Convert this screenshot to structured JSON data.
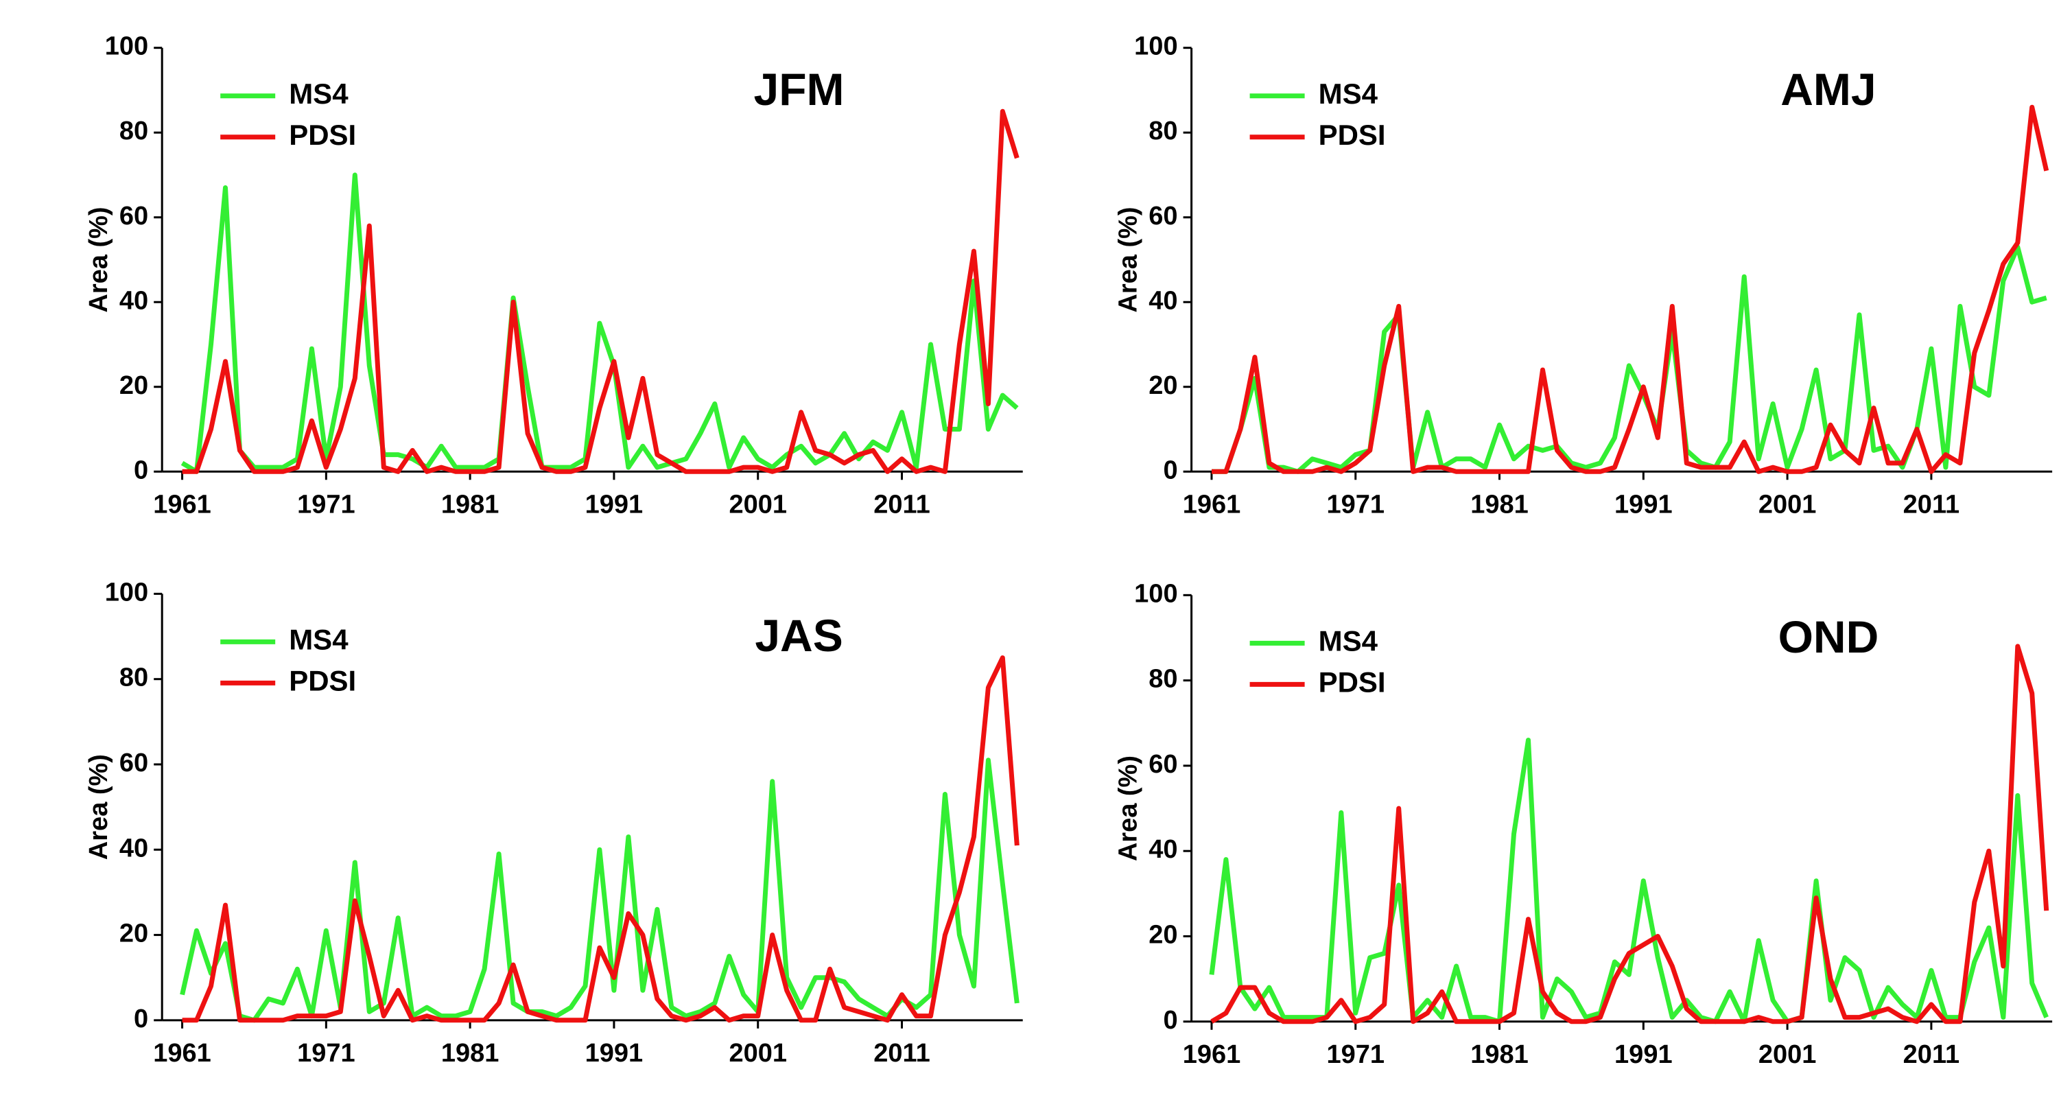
{
  "chart_data": [
    {
      "type": "line",
      "title": "JFM",
      "ylabel": "Area (%)",
      "legend": "upper left",
      "x": [
        1961,
        1962,
        1963,
        1964,
        1965,
        1966,
        1967,
        1968,
        1969,
        1970,
        1971,
        1972,
        1973,
        1974,
        1975,
        1976,
        1977,
        1978,
        1979,
        1980,
        1981,
        1982,
        1983,
        1984,
        1985,
        1986,
        1987,
        1988,
        1989,
        1990,
        1991,
        1992,
        1993,
        1994,
        1995,
        1996,
        1997,
        1998,
        1999,
        2000,
        2001,
        2002,
        2003,
        2004,
        2005,
        2006,
        2007,
        2008,
        2009,
        2010,
        2011,
        2012,
        2013,
        2014,
        2015,
        2016,
        2017,
        2018,
        2019
      ],
      "xlim": [
        1959.6,
        2019.4
      ],
      "xticks": [
        1961,
        1971,
        1981,
        1991,
        2001,
        2011
      ],
      "ylim": [
        0,
        100
      ],
      "yticks": [
        0,
        20,
        40,
        60,
        80,
        100
      ],
      "series": [
        {
          "name": "MS4",
          "color": "#33ee33",
          "values": [
            2,
            0,
            30,
            67,
            5,
            1,
            1,
            1,
            3,
            29,
            3,
            20,
            70,
            25,
            4,
            4,
            3,
            1,
            6,
            1,
            1,
            1,
            3,
            41,
            20,
            1,
            1,
            1,
            3,
            35,
            25,
            1,
            6,
            1,
            2,
            3,
            9,
            16,
            1,
            8,
            3,
            1,
            4,
            6,
            2,
            4,
            9,
            3,
            7,
            5,
            14,
            1,
            30,
            10,
            10,
            45,
            10,
            18,
            15
          ]
        },
        {
          "name": "PDSI",
          "color": "#ee1111",
          "values": [
            0,
            0,
            10,
            26,
            5,
            0,
            0,
            0,
            1,
            12,
            1,
            10,
            22,
            58,
            1,
            0,
            5,
            0,
            1,
            0,
            0,
            0,
            1,
            40,
            9,
            1,
            0,
            0,
            1,
            15,
            26,
            8,
            22,
            4,
            2,
            0,
            0,
            0,
            0,
            1,
            1,
            0,
            1,
            14,
            5,
            4,
            2,
            4,
            5,
            0,
            3,
            0,
            1,
            0,
            30,
            52,
            16,
            85,
            74
          ]
        }
      ]
    },
    {
      "type": "line",
      "title": "AMJ",
      "ylabel": "Area (%)",
      "legend": "upper left",
      "x": [
        1961,
        1962,
        1963,
        1964,
        1965,
        1966,
        1967,
        1968,
        1969,
        1970,
        1971,
        1972,
        1973,
        1974,
        1975,
        1976,
        1977,
        1978,
        1979,
        1980,
        1981,
        1982,
        1983,
        1984,
        1985,
        1986,
        1987,
        1988,
        1989,
        1990,
        1991,
        1992,
        1993,
        1994,
        1995,
        1996,
        1997,
        1998,
        1999,
        2000,
        2001,
        2002,
        2003,
        2004,
        2005,
        2006,
        2007,
        2008,
        2009,
        2010,
        2011,
        2012,
        2013,
        2014,
        2015,
        2016,
        2017,
        2018,
        2019
      ],
      "xlim": [
        1959.6,
        2019.4
      ],
      "xticks": [
        1961,
        1971,
        1981,
        1991,
        2001,
        2011
      ],
      "ylim": [
        0,
        100
      ],
      "yticks": [
        0,
        20,
        40,
        60,
        80,
        100
      ],
      "series": [
        {
          "name": "MS4",
          "color": "#33ee33",
          "values": [
            0,
            0,
            10,
            22,
            1,
            1,
            0,
            3,
            2,
            1,
            4,
            5,
            33,
            37,
            1,
            14,
            1,
            3,
            3,
            1,
            11,
            3,
            6,
            5,
            6,
            2,
            1,
            2,
            8,
            25,
            18,
            10,
            33,
            5,
            2,
            1,
            7,
            46,
            3,
            16,
            1,
            10,
            24,
            3,
            5,
            37,
            5,
            6,
            1,
            10,
            29,
            1,
            39,
            20,
            18,
            45,
            53,
            40,
            41
          ]
        },
        {
          "name": "PDSI",
          "color": "#ee1111",
          "values": [
            0,
            0,
            10,
            27,
            2,
            0,
            0,
            0,
            1,
            0,
            2,
            5,
            25,
            39,
            0,
            1,
            1,
            0,
            0,
            0,
            0,
            0,
            0,
            24,
            5,
            1,
            0,
            0,
            1,
            10,
            20,
            8,
            39,
            2,
            1,
            1,
            1,
            7,
            0,
            1,
            0,
            0,
            1,
            11,
            5,
            2,
            15,
            2,
            2,
            10,
            0,
            4,
            2,
            28,
            38,
            49,
            54,
            86,
            71
          ]
        }
      ]
    },
    {
      "type": "line",
      "title": "JAS",
      "ylabel": "Area (%)",
      "legend": "upper left",
      "x": [
        1961,
        1962,
        1963,
        1964,
        1965,
        1966,
        1967,
        1968,
        1969,
        1970,
        1971,
        1972,
        1973,
        1974,
        1975,
        1976,
        1977,
        1978,
        1979,
        1980,
        1981,
        1982,
        1983,
        1984,
        1985,
        1986,
        1987,
        1988,
        1989,
        1990,
        1991,
        1992,
        1993,
        1994,
        1995,
        1996,
        1997,
        1998,
        1999,
        2000,
        2001,
        2002,
        2003,
        2004,
        2005,
        2006,
        2007,
        2008,
        2009,
        2010,
        2011,
        2012,
        2013,
        2014,
        2015,
        2016,
        2017,
        2018,
        2019
      ],
      "xlim": [
        1959.6,
        2019.4
      ],
      "xticks": [
        1961,
        1971,
        1981,
        1991,
        2001,
        2011
      ],
      "ylim": [
        0,
        100
      ],
      "yticks": [
        0,
        20,
        40,
        60,
        80,
        100
      ],
      "series": [
        {
          "name": "MS4",
          "color": "#33ee33",
          "values": [
            6,
            21,
            11,
            18,
            1,
            0,
            5,
            4,
            12,
            1,
            21,
            3,
            37,
            2,
            4,
            24,
            1,
            3,
            1,
            1,
            2,
            12,
            39,
            4,
            2,
            2,
            1,
            3,
            8,
            40,
            7,
            43,
            7,
            26,
            3,
            1,
            2,
            4,
            15,
            6,
            2,
            56,
            10,
            3,
            10,
            10,
            9,
            5,
            3,
            1,
            5,
            3,
            6,
            53,
            20,
            8,
            61,
            32,
            4
          ]
        },
        {
          "name": "PDSI",
          "color": "#ee1111",
          "values": [
            0,
            0,
            8,
            27,
            0,
            0,
            0,
            0,
            1,
            1,
            1,
            2,
            28,
            15,
            1,
            7,
            0,
            1,
            0,
            0,
            0,
            0,
            4,
            13,
            2,
            1,
            0,
            0,
            0,
            17,
            10,
            25,
            20,
            5,
            1,
            0,
            1,
            3,
            0,
            1,
            1,
            20,
            7,
            0,
            0,
            12,
            3,
            2,
            1,
            0,
            6,
            1,
            1,
            20,
            30,
            43,
            78,
            85,
            41
          ]
        }
      ]
    },
    {
      "type": "line",
      "title": "OND",
      "ylabel": "Area (%)",
      "legend": "upper left",
      "x": [
        1961,
        1962,
        1963,
        1964,
        1965,
        1966,
        1967,
        1968,
        1969,
        1970,
        1971,
        1972,
        1973,
        1974,
        1975,
        1976,
        1977,
        1978,
        1979,
        1980,
        1981,
        1982,
        1983,
        1984,
        1985,
        1986,
        1987,
        1988,
        1989,
        1990,
        1991,
        1992,
        1993,
        1994,
        1995,
        1996,
        1997,
        1998,
        1999,
        2000,
        2001,
        2002,
        2003,
        2004,
        2005,
        2006,
        2007,
        2008,
        2009,
        2010,
        2011,
        2012,
        2013,
        2014,
        2015,
        2016,
        2017,
        2018,
        2019
      ],
      "xlim": [
        1959.6,
        2019.4
      ],
      "xticks": [
        1961,
        1971,
        1981,
        1991,
        2001,
        2011
      ],
      "ylim": [
        0,
        100
      ],
      "yticks": [
        0,
        20,
        40,
        60,
        80,
        100
      ],
      "series": [
        {
          "name": "MS4",
          "color": "#33ee33",
          "values": [
            11,
            38,
            8,
            3,
            8,
            1,
            1,
            1,
            1,
            49,
            2,
            15,
            16,
            32,
            1,
            5,
            1,
            13,
            1,
            1,
            0,
            44,
            66,
            1,
            10,
            7,
            1,
            2,
            14,
            11,
            33,
            15,
            1,
            5,
            1,
            0,
            7,
            0,
            19,
            5,
            0,
            1,
            33,
            5,
            15,
            12,
            1,
            8,
            4,
            1,
            12,
            1,
            1,
            14,
            22,
            1,
            53,
            9,
            1
          ]
        },
        {
          "name": "PDSI",
          "color": "#ee1111",
          "values": [
            0,
            2,
            8,
            8,
            2,
            0,
            0,
            0,
            1,
            5,
            0,
            1,
            4,
            50,
            0,
            2,
            7,
            0,
            0,
            0,
            0,
            2,
            24,
            7,
            2,
            0,
            0,
            1,
            10,
            16,
            18,
            20,
            13,
            3,
            0,
            0,
            0,
            0,
            1,
            0,
            0,
            1,
            29,
            10,
            1,
            1,
            2,
            3,
            1,
            0,
            4,
            0,
            0,
            28,
            40,
            13,
            88,
            77,
            26
          ]
        }
      ]
    }
  ]
}
